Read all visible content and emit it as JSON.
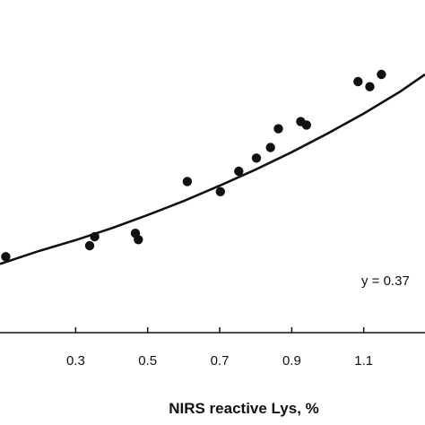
{
  "chart_data": {
    "type": "scatter",
    "title": "",
    "xlabel": "NIRS reactive Lys, %",
    "ylabel": "",
    "xlim": [
      0.09,
      1.27
    ],
    "ylim": [
      0.0,
      1.0
    ],
    "xticks": [
      {
        "value": 0.3,
        "label": "0.3"
      },
      {
        "value": 0.5,
        "label": "0.5"
      },
      {
        "value": 0.7,
        "label": "0.7"
      },
      {
        "value": 0.9,
        "label": "0.9"
      },
      {
        "value": 1.1,
        "label": "1.1"
      }
    ],
    "grid": false,
    "annotation": "y = 0.37",
    "points": [
      {
        "x": 0.106,
        "y": 0.396
      },
      {
        "x": 0.339,
        "y": 0.422
      },
      {
        "x": 0.353,
        "y": 0.443
      },
      {
        "x": 0.466,
        "y": 0.451
      },
      {
        "x": 0.474,
        "y": 0.436
      },
      {
        "x": 0.61,
        "y": 0.573
      },
      {
        "x": 0.702,
        "y": 0.549
      },
      {
        "x": 0.753,
        "y": 0.597
      },
      {
        "x": 0.802,
        "y": 0.628
      },
      {
        "x": 0.841,
        "y": 0.653
      },
      {
        "x": 0.863,
        "y": 0.697
      },
      {
        "x": 0.925,
        "y": 0.714
      },
      {
        "x": 0.941,
        "y": 0.706
      },
      {
        "x": 1.084,
        "y": 0.808
      },
      {
        "x": 1.117,
        "y": 0.796
      },
      {
        "x": 1.149,
        "y": 0.825
      }
    ],
    "fit_line": {
      "x": [
        0.09,
        0.2,
        0.3,
        0.4,
        0.5,
        0.6,
        0.7,
        0.8,
        0.9,
        1.0,
        1.1,
        1.2,
        1.27
      ],
      "y": [
        0.379,
        0.41,
        0.435,
        0.463,
        0.494,
        0.527,
        0.563,
        0.601,
        0.642,
        0.686,
        0.733,
        0.784,
        0.825
      ]
    }
  }
}
